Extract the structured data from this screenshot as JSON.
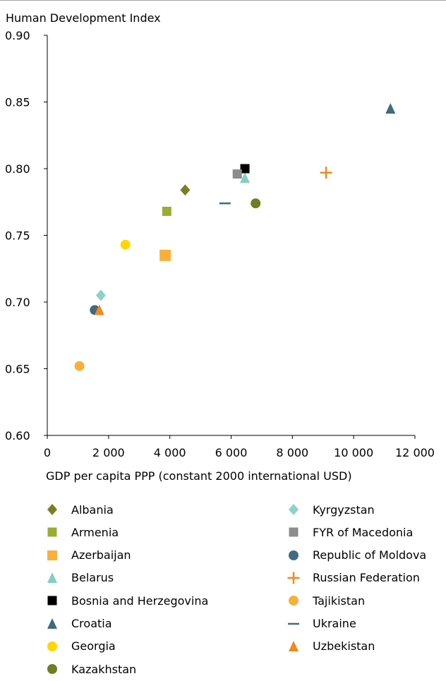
{
  "chart_data": {
    "type": "scatter",
    "title": "",
    "ylabel": "Human Development Index",
    "xlabel": "GDP per capita PPP (constant 2000 international USD)",
    "xlim": [
      0,
      12000
    ],
    "ylim": [
      0.6,
      0.9
    ],
    "xticks": [
      0,
      2000,
      4000,
      6000,
      8000,
      10000,
      12000
    ],
    "xtick_labels": [
      "0",
      "2 000",
      "4 000",
      "6 000",
      "8 000",
      "10 000",
      "12 000"
    ],
    "yticks": [
      0.6,
      0.65,
      0.7,
      0.75,
      0.8,
      0.85,
      0.9
    ],
    "ytick_labels": [
      "0.60",
      "0.65",
      "0.70",
      "0.75",
      "0.80",
      "0.85",
      "0.90"
    ],
    "grid": false,
    "legend_position": "bottom",
    "series": [
      {
        "name": "Albania",
        "marker": "diamond",
        "color": "#7a7f24",
        "x": 4500,
        "y": 0.784
      },
      {
        "name": "Armenia",
        "marker": "square",
        "color": "#9aac36",
        "x": 3900,
        "y": 0.768
      },
      {
        "name": "Azerbaijan",
        "marker": "square-large",
        "color": "#f6b13a",
        "x": 3850,
        "y": 0.735
      },
      {
        "name": "Belarus",
        "marker": "triangle",
        "color": "#86cdc4",
        "x": 6450,
        "y": 0.793
      },
      {
        "name": "Bosnia and Herzegovina",
        "marker": "square",
        "color": "#000000",
        "x": 6450,
        "y": 0.8
      },
      {
        "name": "Croatia",
        "marker": "triangle",
        "color": "#41697f",
        "x": 11200,
        "y": 0.845
      },
      {
        "name": "Georgia",
        "marker": "circle",
        "color": "#ffd700",
        "x": 2550,
        "y": 0.743
      },
      {
        "name": "Kazakhstan",
        "marker": "circle",
        "color": "#6e7e25",
        "x": 6800,
        "y": 0.774
      },
      {
        "name": "Kyrgyzstan",
        "marker": "diamond",
        "color": "#8dd2c8",
        "x": 1750,
        "y": 0.705
      },
      {
        "name": "FYR of Macedonia",
        "marker": "square",
        "color": "#8c8c8c",
        "x": 6200,
        "y": 0.796
      },
      {
        "name": "Republic of Moldova",
        "marker": "circle",
        "color": "#41697f",
        "x": 1550,
        "y": 0.694
      },
      {
        "name": "Russian Federation",
        "marker": "plus",
        "color": "#f08a1c",
        "x": 9100,
        "y": 0.797
      },
      {
        "name": "Tajikistan",
        "marker": "circle",
        "color": "#f6b13a",
        "x": 1050,
        "y": 0.652
      },
      {
        "name": "Ukraine",
        "marker": "dash",
        "color": "#41697f",
        "x": 5800,
        "y": 0.774
      },
      {
        "name": "Uzbekistan",
        "marker": "triangle",
        "color": "#f08a1c",
        "x": 1700,
        "y": 0.694
      }
    ]
  }
}
